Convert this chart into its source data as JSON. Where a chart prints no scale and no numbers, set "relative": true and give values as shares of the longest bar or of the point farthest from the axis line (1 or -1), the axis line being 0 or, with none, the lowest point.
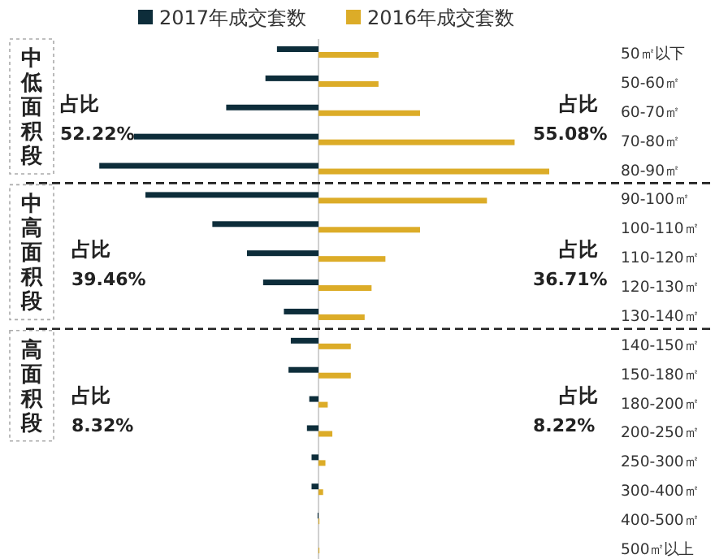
{
  "chart_data": {
    "type": "bar",
    "orientation": "horizontal",
    "relative": true,
    "legend": "top",
    "categories": [
      "50㎡以下",
      "50-60㎡",
      "60-70㎡",
      "70-80㎡",
      "80-90㎡",
      "90-100㎡",
      "100-110㎡",
      "110-120㎡",
      "120-130㎡",
      "130-140㎡",
      "140-150㎡",
      "150-180㎡",
      "180-200㎡",
      "200-250㎡",
      "250-300㎡",
      "300-400㎡",
      "400-500㎡",
      "500㎡以上"
    ],
    "series": [
      {
        "name": "2017年成交套数",
        "color": "#0d2d3a",
        "values": [
          -0.18,
          -0.23,
          -0.4,
          -0.8,
          -0.95,
          -0.75,
          -0.46,
          -0.31,
          -0.24,
          -0.15,
          -0.12,
          -0.13,
          -0.04,
          -0.05,
          -0.03,
          -0.03,
          -0.004,
          0
        ]
      },
      {
        "name": "2016年成交套数",
        "color": "#dcac28",
        "values": [
          0.26,
          0.26,
          0.44,
          0.85,
          1,
          0.73,
          0.44,
          0.29,
          0.23,
          0.2,
          0.14,
          0.14,
          0.04,
          0.06,
          0.03,
          0.02,
          0.004,
          0.004
        ]
      }
    ],
    "annotations": [
      "中低面积段",
      "占比",
      "52.22%",
      "占比",
      "55.08%",
      "中高面积段",
      "占比",
      "39.46%",
      "占比",
      "36.71%",
      "高面积段",
      "占比",
      "8.32%",
      "占比",
      "8.22%"
    ]
  }
}
